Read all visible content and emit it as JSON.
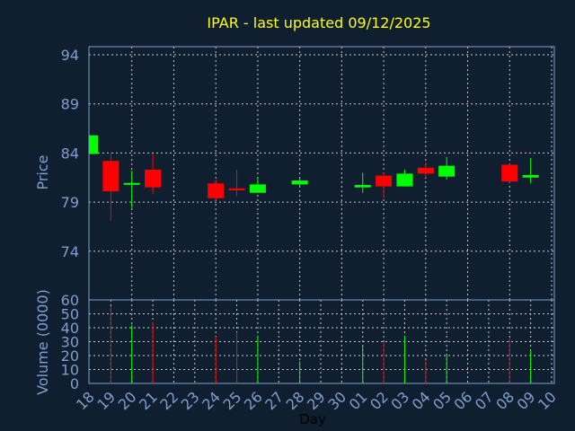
{
  "chart_data": [
    {
      "type": "candlestick",
      "title": "IPAR - last updated 09/12/2025",
      "ylabel": "Price",
      "xlabel": "Day",
      "yticks": [
        94,
        89,
        84,
        79,
        74
      ],
      "ylim": [
        69,
        95
      ],
      "grid": true,
      "categories": [
        "18",
        "19",
        "20",
        "21",
        "22",
        "23",
        "24",
        "25",
        "26",
        "27",
        "28",
        "29",
        "30",
        "01",
        "02",
        "03",
        "04",
        "05",
        "06",
        "07",
        "08",
        "09",
        "10"
      ],
      "up_color": "#00ff00",
      "down_color": "#ff0000",
      "candles": [
        {
          "day": "18",
          "open": 83.9,
          "high": 85.8,
          "low": 83.9,
          "close": 85.8
        },
        {
          "day": "19",
          "open": 83.2,
          "high": 84.0,
          "low": 77.1,
          "close": 80.1
        },
        {
          "day": "20",
          "open": 80.85,
          "high": 82.2,
          "low": 78.4,
          "close": 80.95
        },
        {
          "day": "21",
          "open": 82.3,
          "high": 83.9,
          "low": 79.8,
          "close": 80.5
        },
        {
          "day": "24",
          "open": 80.9,
          "high": 81.3,
          "low": 79.2,
          "close": 79.4
        },
        {
          "day": "25",
          "open": 80.4,
          "high": 82.3,
          "low": 79.6,
          "close": 80.2
        },
        {
          "day": "26",
          "open": 79.95,
          "high": 81.5,
          "low": 79.95,
          "close": 80.8
        },
        {
          "day": "28",
          "open": 80.8,
          "high": 81.4,
          "low": 80.5,
          "close": 81.2
        },
        {
          "day": "01",
          "open": 80.5,
          "high": 82.0,
          "low": 79.95,
          "close": 80.75
        },
        {
          "day": "02",
          "open": 81.7,
          "high": 82.0,
          "low": 79.4,
          "close": 80.6
        },
        {
          "day": "03",
          "open": 80.6,
          "high": 82.3,
          "low": 80.6,
          "close": 81.9
        },
        {
          "day": "04",
          "open": 82.5,
          "high": 83.0,
          "low": 81.5,
          "close": 81.9
        },
        {
          "day": "05",
          "open": 81.6,
          "high": 83.6,
          "low": 81.3,
          "close": 82.7
        },
        {
          "day": "08",
          "open": 82.8,
          "high": 82.9,
          "low": 80.9,
          "close": 81.1
        },
        {
          "day": "09",
          "open": 81.5,
          "high": 83.5,
          "low": 80.9,
          "close": 81.75
        }
      ]
    },
    {
      "type": "bar",
      "ylabel": "Volume (0000)",
      "yticks": [
        0,
        10,
        20,
        30,
        40,
        50,
        60
      ],
      "ylim": [
        0,
        60
      ],
      "grid": true,
      "bars": [
        {
          "day": "19",
          "value": 55.5,
          "color": "#ff0000"
        },
        {
          "day": "20",
          "value": 42,
          "color": "#00ff00"
        },
        {
          "day": "21",
          "value": 44,
          "color": "#ff0000"
        },
        {
          "day": "24",
          "value": 33.7,
          "color": "#ff0000"
        },
        {
          "day": "25",
          "value": 36.8,
          "color": "#ff0000"
        },
        {
          "day": "26",
          "value": 34.2,
          "color": "#00ff00"
        },
        {
          "day": "28",
          "value": 16,
          "color": "#00ff00"
        },
        {
          "day": "01",
          "value": 26.5,
          "color": "#00ff00"
        },
        {
          "day": "02",
          "value": 29.7,
          "color": "#ff0000"
        },
        {
          "day": "03",
          "value": 34.2,
          "color": "#00ff00"
        },
        {
          "day": "04",
          "value": 16.3,
          "color": "#ff0000"
        },
        {
          "day": "05",
          "value": 20.8,
          "color": "#00ff00"
        },
        {
          "day": "08",
          "value": 33,
          "color": "#ff0000"
        },
        {
          "day": "09",
          "value": 23.7,
          "color": "#00ff00"
        }
      ]
    }
  ]
}
